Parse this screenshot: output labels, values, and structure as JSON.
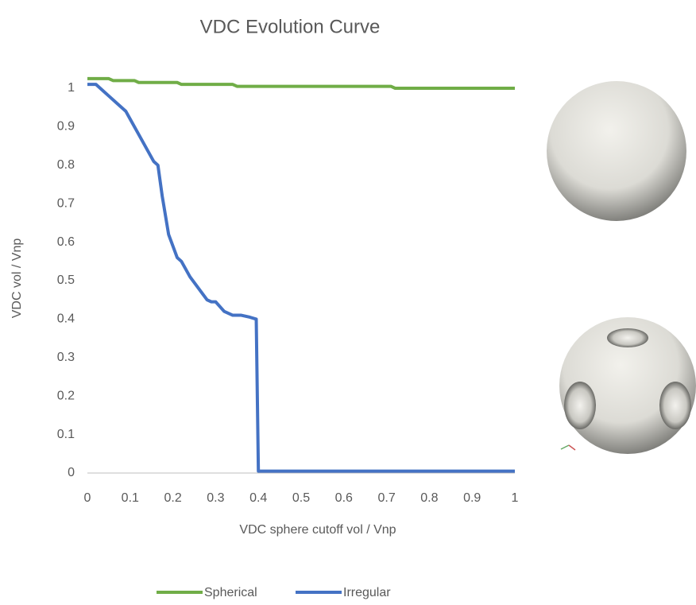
{
  "chart_data": {
    "type": "line",
    "title": "VDC Evolution  Curve",
    "xlabel": "VDC sphere  cutoff vol / Vnp",
    "ylabel": "VDC vol / Vnp",
    "xlim": [
      0,
      1
    ],
    "ylim": [
      0,
      1
    ],
    "xticks": [
      0,
      0.1,
      0.2,
      0.3,
      0.4,
      0.5,
      0.6,
      0.7,
      0.8,
      0.9,
      1
    ],
    "yticks": [
      0,
      0.1,
      0.2,
      0.3,
      0.4,
      0.5,
      0.6,
      0.7,
      0.8,
      0.9,
      1
    ],
    "grid": false,
    "legend": "bottom",
    "series": [
      {
        "name": "Spherical",
        "color": "#70ad47",
        "x": [
          0,
          0.05,
          0.06,
          0.11,
          0.12,
          0.21,
          0.22,
          0.34,
          0.35,
          0.71,
          0.72,
          1
        ],
        "values": [
          1.025,
          1.025,
          1.02,
          1.02,
          1.015,
          1.015,
          1.01,
          1.01,
          1.005,
          1.005,
          1.0,
          1.0
        ]
      },
      {
        "name": "Irregular",
        "color": "#4472c4",
        "x": [
          0,
          0.02,
          0.03,
          0.05,
          0.07,
          0.09,
          0.1,
          0.12,
          0.14,
          0.155,
          0.165,
          0.175,
          0.19,
          0.21,
          0.22,
          0.24,
          0.26,
          0.28,
          0.29,
          0.3,
          0.32,
          0.34,
          0.36,
          0.38,
          0.395,
          0.4,
          1
        ],
        "values": [
          1.01,
          1.01,
          1.0,
          0.98,
          0.96,
          0.94,
          0.92,
          0.88,
          0.84,
          0.81,
          0.8,
          0.72,
          0.62,
          0.56,
          0.55,
          0.51,
          0.48,
          0.45,
          0.445,
          0.445,
          0.42,
          0.41,
          0.41,
          0.405,
          0.4,
          0.005,
          0.005
        ]
      }
    ]
  }
}
